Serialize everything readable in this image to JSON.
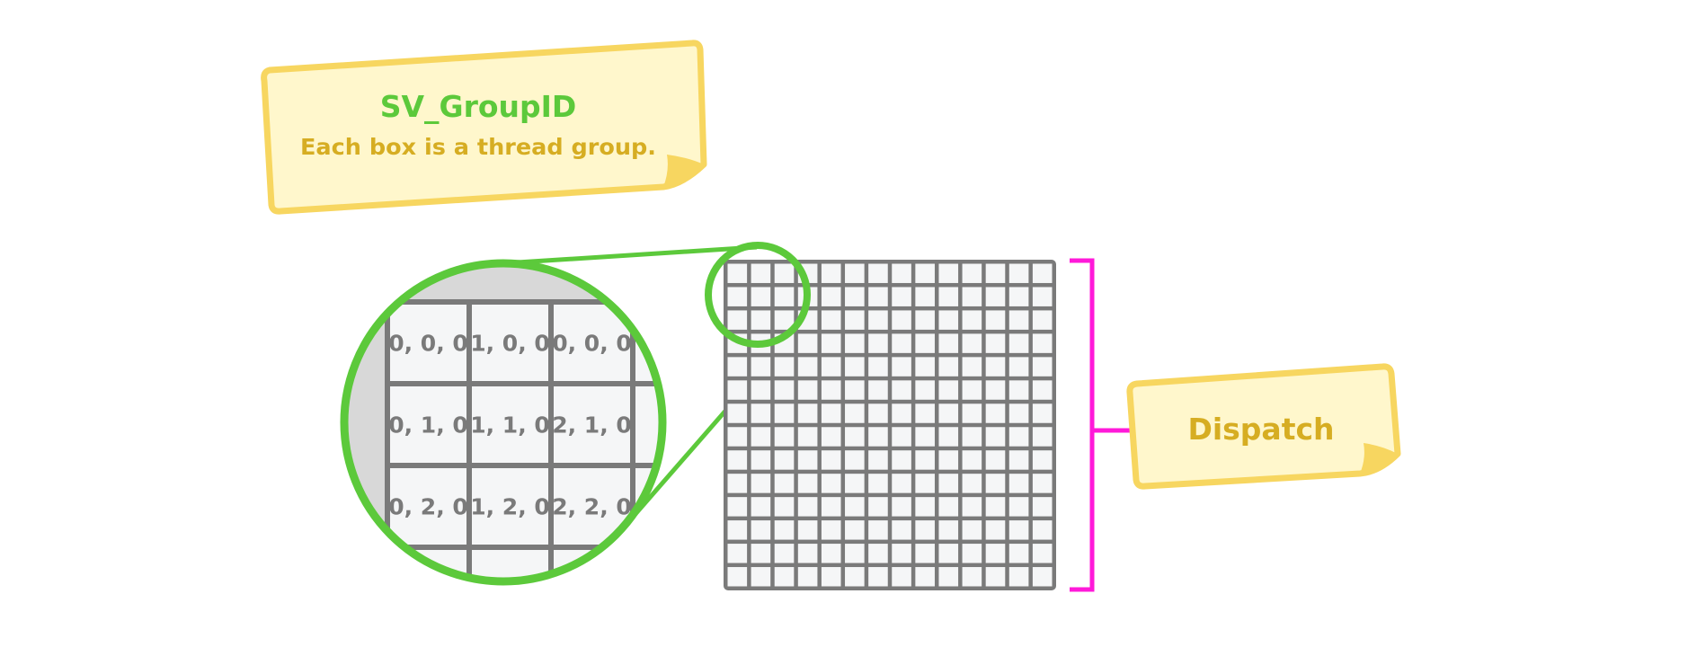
{
  "colors": {
    "green": "#5cc93b",
    "note_fill": "#fff7cc",
    "note_border": "#f7d660",
    "note_text": "#d6ad22",
    "grid": "#7a7a7a",
    "cell": "#f5f6f7",
    "magenta": "#ff19d9",
    "circle_bg": "#d8d8d8"
  },
  "group_note": {
    "title": "SV_GroupID",
    "subtitle": "Each box is a thread group."
  },
  "dispatch_note": {
    "label": "Dispatch"
  },
  "dispatch_grid": {
    "columns": 14,
    "rows": 14
  },
  "zoom_cells": [
    [
      "0, 0, 0",
      "1, 0, 0",
      "0, 0, 0"
    ],
    [
      "0, 1, 0",
      "1, 1, 0",
      "2, 1, 0"
    ],
    [
      "0, 2, 0",
      "1, 2, 0",
      "2, 2, 0"
    ]
  ]
}
